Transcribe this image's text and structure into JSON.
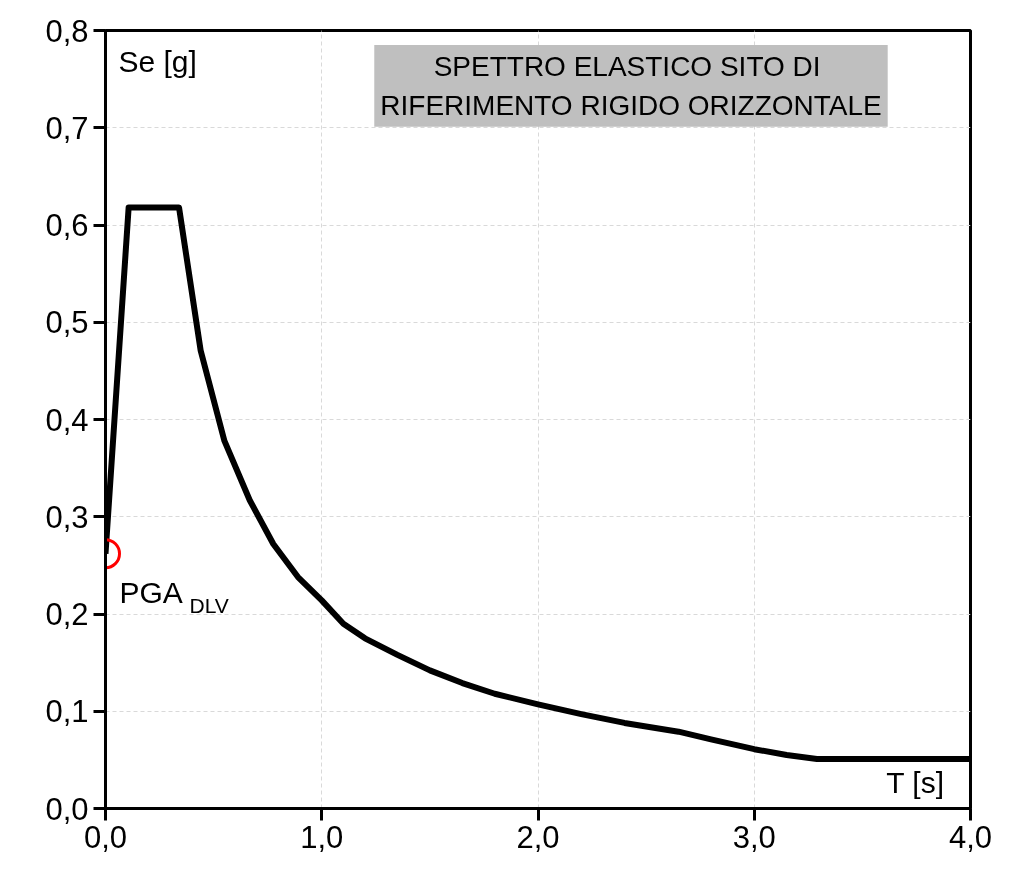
{
  "chart_data": {
    "type": "line",
    "title": "SPETTRO ELASTICO  SITO DI\nRIFERIMENTO RIGIDO ORIZZONTALE",
    "xlabel": "T [s]",
    "ylabel": "Se [g]",
    "x": [
      0,
      0.107,
      0.34,
      0.44,
      0.55,
      0.667,
      0.776,
      0.89,
      1.0,
      1.1,
      1.2,
      1.35,
      1.5,
      1.65,
      1.8,
      2.0,
      2.2,
      2.4,
      2.65,
      2.8,
      3.0,
      3.15,
      3.29,
      4.0
    ],
    "series": [
      {
        "color": "#000000",
        "values": [
          0.262,
          0.618,
          0.618,
          0.471,
          0.378,
          0.317,
          0.272,
          0.238,
          0.214,
          0.19,
          0.175,
          0.158,
          0.142,
          0.129,
          0.118,
          0.107,
          0.097,
          0.088,
          0.079,
          0.071,
          0.061,
          0.055,
          0.051,
          0.051
        ]
      }
    ],
    "annotations": [
      {
        "text": "PGA $_{DLV}$",
        "x": 0,
        "y": 0.262
      }
    ],
    "xlim": [
      0,
      4
    ],
    "ylim": [
      0,
      0.8
    ],
    "xticks": [
      {
        "value": 0,
        "label": "0,0"
      },
      {
        "value": 1,
        "label": "1,0"
      },
      {
        "value": 2,
        "label": "2,0"
      },
      {
        "value": 3,
        "label": "3,0"
      },
      {
        "value": 4,
        "label": "4,0"
      }
    ],
    "yticks": [
      {
        "value": 0,
        "label": "0,0"
      },
      {
        "value": 0.1,
        "label": "0,1"
      },
      {
        "value": 0.2,
        "label": "0,2"
      },
      {
        "value": 0.3,
        "label": "0,3"
      },
      {
        "value": 0.4,
        "label": "0,4"
      },
      {
        "value": 0.5,
        "label": "0,5"
      },
      {
        "value": 0.6,
        "label": "0,6"
      },
      {
        "value": 0.7,
        "label": "0,7"
      },
      {
        "value": 0.8,
        "label": "0,8"
      }
    ],
    "grid": true,
    "marker": "none",
    "line_style": "solid"
  }
}
